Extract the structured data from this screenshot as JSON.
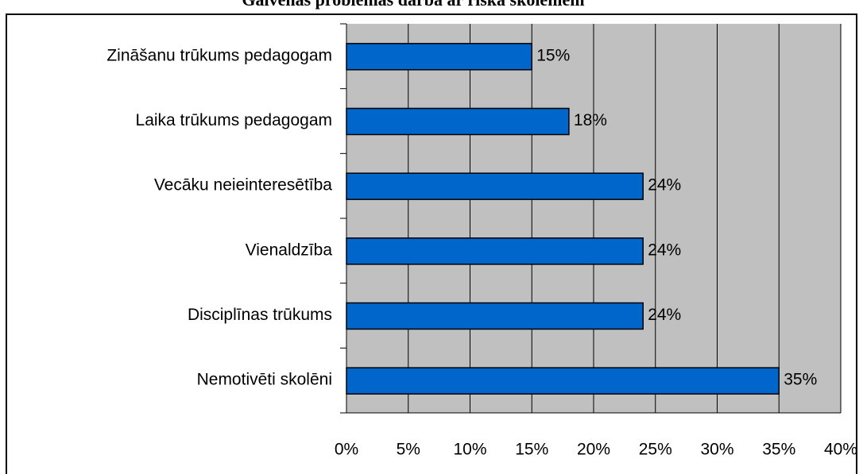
{
  "chart_data": {
    "type": "barh",
    "title": "Galvenās problēmas darbā ar riska skolēniem",
    "categories": [
      "Zināšanu trūkums pedagogam",
      "Laika trūkums pedagogam",
      "Vecāku neieinteresētība",
      "Vienaldzība",
      "Disciplīnas trūkums",
      "Nemotivēti skolēni"
    ],
    "values": [
      15,
      18,
      24,
      24,
      24,
      35
    ],
    "value_labels": [
      "15%",
      "18%",
      "24%",
      "24%",
      "24%",
      "35%"
    ],
    "color": "#0066cc",
    "xlim": [
      0,
      40
    ],
    "xticks": [
      {
        "value": 0,
        "label": "0%"
      },
      {
        "value": 5,
        "label": "5%"
      },
      {
        "value": 10,
        "label": "10%"
      },
      {
        "value": 15,
        "label": "15%"
      },
      {
        "value": 20,
        "label": "20%"
      },
      {
        "value": 25,
        "label": "25%"
      },
      {
        "value": 30,
        "label": "30%"
      },
      {
        "value": 35,
        "label": "35%"
      },
      {
        "value": 40,
        "label": "40%"
      }
    ],
    "grid": true
  }
}
